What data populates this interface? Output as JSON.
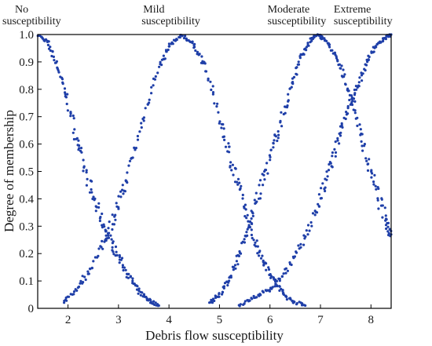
{
  "chart_data": {
    "type": "scatter",
    "title": "",
    "xlabel": "Debris flow susceptibility",
    "ylabel": "Degree of membership",
    "xlim": [
      1.4,
      8.4
    ],
    "ylim": [
      0,
      1.0
    ],
    "x_ticks": [
      2,
      3,
      4,
      5,
      6,
      7,
      8
    ],
    "y_ticks": [
      "0",
      "0.1",
      "0.2",
      "0.3",
      "0.4",
      "0.5",
      "0.6",
      "0.7",
      "0.8",
      "0.9",
      "1.0"
    ],
    "grid": false,
    "marker_color": "#1f3fa8",
    "category_labels": [
      {
        "lines": [
          "No",
          "susceptibility"
        ],
        "x": 1.4
      },
      {
        "lines": [
          "Mild",
          "susceptibility"
        ],
        "x": 4.25
      },
      {
        "lines": [
          "Moderate",
          "susceptibility"
        ],
        "x": 6.95
      },
      {
        "lines": [
          "Extreme",
          "susceptibility"
        ],
        "x": 8.4
      }
    ],
    "series": [
      {
        "name": "No susceptibility",
        "x": [
          1.4,
          1.6,
          1.8,
          2.0,
          2.2,
          2.4,
          2.6,
          2.8,
          3.0,
          3.2,
          3.4,
          3.6,
          3.8
        ],
        "y": [
          1.0,
          0.97,
          0.88,
          0.75,
          0.6,
          0.46,
          0.35,
          0.26,
          0.19,
          0.12,
          0.06,
          0.03,
          0.01
        ]
      },
      {
        "name": "Mild susceptibility",
        "x": [
          1.9,
          2.2,
          2.5,
          2.8,
          3.0,
          3.2,
          3.5,
          3.8,
          4.0,
          4.25,
          4.5,
          4.7,
          5.0,
          5.2,
          5.4,
          5.6,
          5.8,
          6.0,
          6.2,
          6.4,
          6.7
        ],
        "y": [
          0.02,
          0.08,
          0.16,
          0.28,
          0.38,
          0.5,
          0.7,
          0.88,
          0.96,
          1.0,
          0.96,
          0.89,
          0.7,
          0.56,
          0.43,
          0.3,
          0.2,
          0.13,
          0.07,
          0.03,
          0.01
        ]
      },
      {
        "name": "Moderate susceptibility",
        "x": [
          4.8,
          5.0,
          5.2,
          5.4,
          5.6,
          5.8,
          6.0,
          6.2,
          6.4,
          6.6,
          6.8,
          6.95,
          7.1,
          7.3,
          7.5,
          7.7,
          7.9,
          8.1,
          8.3,
          8.4
        ],
        "y": [
          0.02,
          0.05,
          0.11,
          0.2,
          0.31,
          0.43,
          0.55,
          0.67,
          0.8,
          0.91,
          0.98,
          1.0,
          0.98,
          0.92,
          0.83,
          0.71,
          0.56,
          0.43,
          0.32,
          0.27
        ]
      },
      {
        "name": "Extreme susceptibility",
        "x": [
          5.4,
          5.7,
          6.0,
          6.3,
          6.6,
          6.9,
          7.1,
          7.3,
          7.5,
          7.7,
          7.9,
          8.1,
          8.3,
          8.4
        ],
        "y": [
          0.01,
          0.04,
          0.07,
          0.13,
          0.22,
          0.35,
          0.46,
          0.58,
          0.7,
          0.8,
          0.89,
          0.96,
          0.99,
          1.0
        ]
      }
    ]
  }
}
